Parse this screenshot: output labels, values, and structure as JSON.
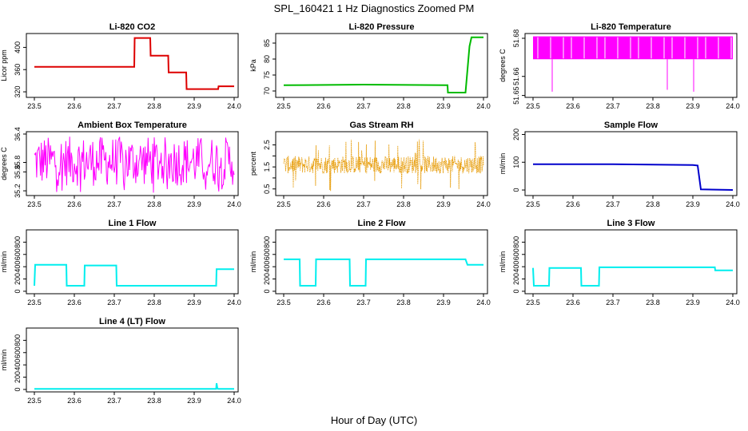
{
  "figure": {
    "title": "SPL_160421  1 Hz Diagnostics Zoomed PM",
    "xlabel": "Hour of Day (UTC)"
  },
  "chart_data": [
    {
      "type": "line",
      "title": "Li-820 CO2",
      "ylabel": "Licor ppm",
      "xlim": [
        23.48,
        24.01
      ],
      "ylim": [
        310,
        425
      ],
      "xticks": [
        "23.5",
        "23.6",
        "23.7",
        "23.8",
        "23.9",
        "24.0"
      ],
      "yticks": [
        "320",
        "360",
        "400"
      ],
      "ytick_values": [
        320,
        360,
        400
      ],
      "color": "#dd0000",
      "series": [
        {
          "x": [
            23.5,
            23.75,
            23.751,
            23.79,
            23.791,
            23.835,
            23.836,
            23.88,
            23.881,
            23.96,
            23.961,
            24.0
          ],
          "y": [
            365,
            365,
            417,
            417,
            385,
            385,
            355,
            355,
            325,
            325,
            330,
            330
          ]
        }
      ]
    },
    {
      "type": "line",
      "title": "Li-820 Pressure",
      "ylabel": "kPa",
      "xlim": [
        23.48,
        24.01
      ],
      "ylim": [
        68,
        88
      ],
      "xticks": [
        "23.5",
        "23.6",
        "23.7",
        "23.8",
        "23.9",
        "24.0"
      ],
      "yticks": [
        "70",
        "75",
        "80",
        "85"
      ],
      "ytick_values": [
        70,
        75,
        80,
        85
      ],
      "color": "#00bb00",
      "series": [
        {
          "x": [
            23.5,
            23.7,
            23.91,
            23.911,
            23.955,
            23.965,
            23.97,
            24.0
          ],
          "y": [
            71.8,
            72.0,
            71.8,
            69.5,
            69.5,
            84,
            86.8,
            86.8
          ]
        }
      ]
    },
    {
      "type": "line",
      "title": "Li-820 Temperature",
      "ylabel": "degrees C",
      "xlim": [
        23.48,
        24.01
      ],
      "ylim": [
        51.649,
        51.6825
      ],
      "xticks": [
        "23.5",
        "23.6",
        "23.7",
        "23.8",
        "23.9",
        "24.0"
      ],
      "yticks": [
        "51.65",
        "51.66",
        "51.68"
      ],
      "ytick_values": [
        51.65,
        51.66,
        51.68
      ],
      "color": "#ff00ff",
      "render": "band",
      "band": [
        51.669,
        51.681
      ],
      "spikes": [
        {
          "x": 23.548,
          "y": 51.652
        },
        {
          "x": 23.836,
          "y": 51.653
        },
        {
          "x": 23.902,
          "y": 51.652
        }
      ]
    },
    {
      "type": "line",
      "title": "Ambient Box Temperature",
      "ylabel": "degrees C",
      "xlim": [
        23.48,
        24.01
      ],
      "ylim": [
        35.1,
        36.45
      ],
      "xticks": [
        "23.5",
        "23.6",
        "23.7",
        "23.8",
        "23.9",
        "24.0"
      ],
      "yticks": [
        "35.2",
        "35.6",
        "35.8",
        "36.4"
      ],
      "ytick_values": [
        35.2,
        35.6,
        35.8,
        36.4
      ],
      "color": "#ff00ff",
      "render": "noise",
      "noise": {
        "low": 35.3,
        "high": 36.35,
        "extreme_low": 35.15
      }
    },
    {
      "type": "scatter",
      "title": "Gas Stream RH",
      "ylabel": "percent",
      "xlim": [
        23.48,
        24.01
      ],
      "ylim": [
        0.2,
        3.1
      ],
      "xticks": [
        "23.5",
        "23.6",
        "23.7",
        "23.8",
        "23.9",
        "24.0"
      ],
      "yticks": [
        "0.5",
        "1.5",
        "2.5"
      ],
      "ytick_values": [
        0.5,
        1.5,
        2.5
      ],
      "extra_ytick_values": [
        1.0,
        2.0
      ],
      "color": "#e69900",
      "render": "scatter-noise",
      "noise": {
        "low": 1.2,
        "high": 2.0,
        "extreme_low": 0.4,
        "extreme_high": 2.8
      }
    },
    {
      "type": "line",
      "title": "Sample Flow",
      "ylabel": "ml/min",
      "xlim": [
        23.48,
        24.01
      ],
      "ylim": [
        -20,
        210
      ],
      "xticks": [
        "23.5",
        "23.6",
        "23.7",
        "23.8",
        "23.9",
        "24.0"
      ],
      "yticks": [
        "0",
        "100",
        "200"
      ],
      "ytick_values": [
        0,
        100,
        200
      ],
      "color": "#0000cc",
      "series": [
        {
          "x": [
            23.5,
            23.7,
            23.9,
            23.912,
            23.92,
            24.0
          ],
          "y": [
            93,
            93,
            90,
            88,
            2,
            0
          ]
        }
      ]
    },
    {
      "type": "line",
      "title": "Line 1 Flow",
      "ylabel": "ml/min",
      "xlim": [
        23.48,
        24.01
      ],
      "ylim": [
        -40,
        1000
      ],
      "xticks": [
        "23.5",
        "23.6",
        "23.7",
        "23.8",
        "23.9",
        "24.0"
      ],
      "yticks": [
        "0",
        "200",
        "400",
        "600",
        "800"
      ],
      "ytick_values": [
        0,
        200,
        400,
        600,
        800
      ],
      "color": "#00eeee",
      "series": [
        {
          "x": [
            23.5,
            23.502,
            23.58,
            23.581,
            23.625,
            23.626,
            23.705,
            23.706,
            23.955,
            23.956,
            24.0
          ],
          "y": [
            90,
            430,
            430,
            90,
            90,
            420,
            420,
            90,
            90,
            360,
            360
          ]
        }
      ]
    },
    {
      "type": "line",
      "title": "Line 2 Flow",
      "ylabel": "ml/min",
      "xlim": [
        23.48,
        24.01
      ],
      "ylim": [
        -40,
        1000
      ],
      "xticks": [
        "23.5",
        "23.6",
        "23.7",
        "23.8",
        "23.9",
        "24.0"
      ],
      "yticks": [
        "0",
        "200",
        "400",
        "600",
        "800"
      ],
      "ytick_values": [
        0,
        200,
        400,
        600,
        800
      ],
      "color": "#00eeee",
      "series": [
        {
          "x": [
            23.5,
            23.54,
            23.541,
            23.58,
            23.581,
            23.665,
            23.666,
            23.705,
            23.706,
            23.955,
            23.96,
            24.0
          ],
          "y": [
            520,
            520,
            90,
            90,
            520,
            520,
            90,
            90,
            520,
            520,
            430,
            430
          ]
        }
      ]
    },
    {
      "type": "line",
      "title": "Line 3 Flow",
      "ylabel": "ml/min",
      "xlim": [
        23.48,
        24.01
      ],
      "ylim": [
        -40,
        1000
      ],
      "xticks": [
        "23.5",
        "23.6",
        "23.7",
        "23.8",
        "23.9",
        "24.0"
      ],
      "yticks": [
        "0",
        "200",
        "400",
        "600",
        "800"
      ],
      "ytick_values": [
        0,
        200,
        400,
        600,
        800
      ],
      "color": "#00eeee",
      "series": [
        {
          "x": [
            23.5,
            23.502,
            23.54,
            23.541,
            23.62,
            23.621,
            23.665,
            23.666,
            23.955,
            23.956,
            24.0
          ],
          "y": [
            380,
            90,
            90,
            380,
            380,
            90,
            90,
            390,
            390,
            340,
            340
          ]
        }
      ]
    },
    {
      "type": "line",
      "title": "Line 4 (LT) Flow",
      "ylabel": "ml/min",
      "xlim": [
        23.48,
        24.01
      ],
      "ylim": [
        -40,
        1000
      ],
      "xticks": [
        "23.5",
        "23.6",
        "23.7",
        "23.8",
        "23.9",
        "24.0"
      ],
      "yticks": [
        "0",
        "200",
        "400",
        "600",
        "800"
      ],
      "ytick_values": [
        0,
        200,
        400,
        600,
        800
      ],
      "color": "#00eeee",
      "series": [
        {
          "x": [
            23.5,
            23.955,
            23.956,
            23.958,
            23.96,
            24.0
          ],
          "y": [
            8,
            8,
            100,
            20,
            8,
            8
          ]
        }
      ]
    }
  ]
}
